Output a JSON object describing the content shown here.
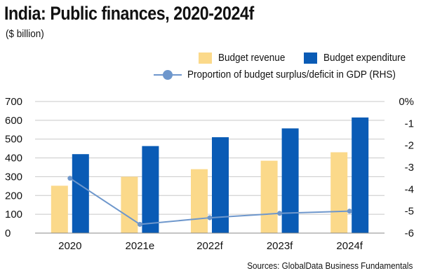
{
  "title": "India: Public finances, 2020-2024f",
  "subtitle": "($ billion)",
  "legend": {
    "revenue": "Budget revenue",
    "expenditure": "Budget expenditure",
    "ratio": "Proportion of budget surplus/deficit in GDP (RHS)"
  },
  "source": "Sources: GlobalData Business Fundamentals",
  "colors": {
    "revenue": "#fbd98a",
    "expenditure": "#0a5bb5",
    "line": "#6e97cc",
    "grid": "#c8c8c8"
  },
  "chart_data": {
    "type": "bar",
    "categories": [
      "2020",
      "2021e",
      "2022f",
      "2023f",
      "2024f"
    ],
    "series": [
      {
        "name": "Budget revenue",
        "type": "bar",
        "axis": "left",
        "values": [
          252,
          300,
          340,
          385,
          430
        ]
      },
      {
        "name": "Budget expenditure",
        "type": "bar",
        "axis": "left",
        "values": [
          420,
          463,
          510,
          557,
          615
        ]
      },
      {
        "name": "Proportion of budget surplus/deficit in GDP (RHS)",
        "type": "line",
        "axis": "right",
        "values": [
          -3.5,
          -5.6,
          -5.3,
          -5.1,
          -5.0
        ]
      }
    ],
    "ylim": [
      0,
      700
    ],
    "yticks": [
      "0",
      "100",
      "200",
      "300",
      "400",
      "500",
      "600",
      "700"
    ],
    "y2lim": [
      -6,
      0
    ],
    "y2ticks": [
      "0%",
      "-1",
      "-2",
      "-3",
      "-4",
      "-5",
      "-6"
    ],
    "grid": true,
    "legend_position": "top-right"
  }
}
